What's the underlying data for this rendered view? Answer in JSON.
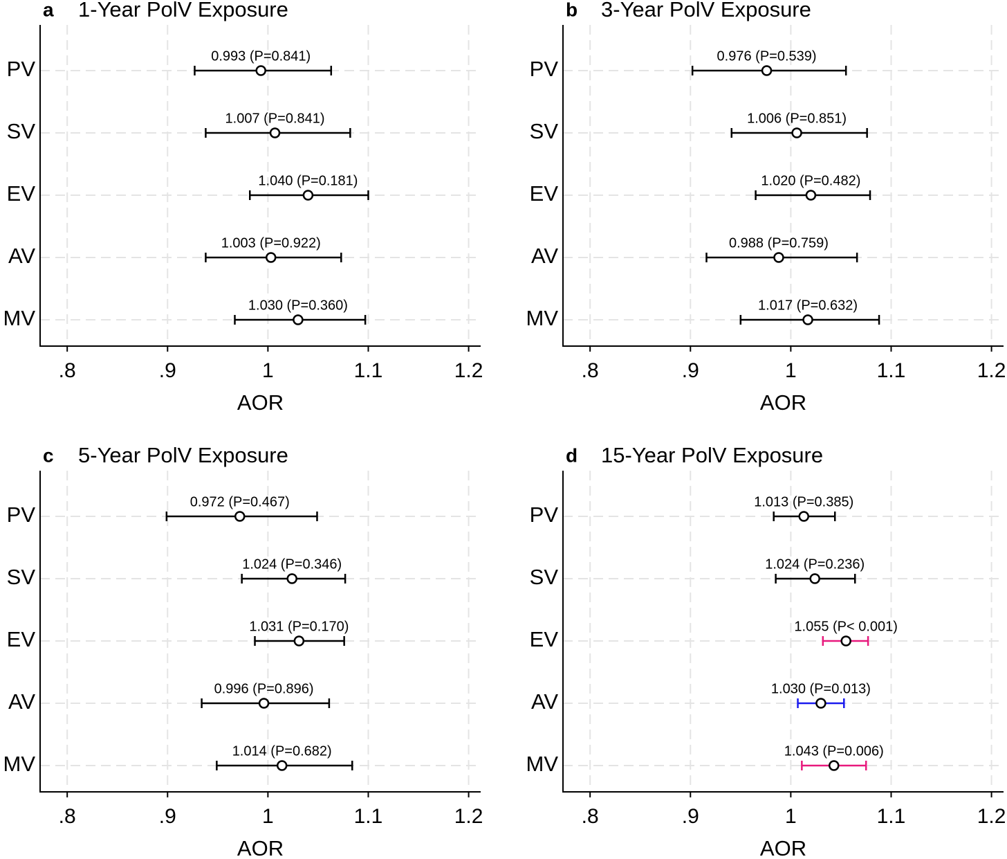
{
  "chart_data": [
    {
      "type": "forest",
      "panel": "a",
      "title": "1-Year PolV Exposure",
      "xlabel": "AOR",
      "categories": [
        "PV",
        "SV",
        "EV",
        "AV",
        "MV"
      ],
      "values": [
        0.993,
        1.007,
        1.04,
        1.003,
        1.03
      ],
      "ci_lower": [
        0.927,
        0.938,
        0.982,
        0.938,
        0.967
      ],
      "ci_upper": [
        1.063,
        1.082,
        1.1,
        1.073,
        1.097
      ],
      "value_labels": [
        "0.993 (P=0.841)",
        "1.007 (P=0.841)",
        "1.040 (P=0.181)",
        "1.003 (P=0.922)",
        "1.030 (P=0.360)"
      ],
      "colors": [
        "#000000",
        "#000000",
        "#000000",
        "#000000",
        "#000000"
      ],
      "xlim": [
        0.773,
        1.212
      ],
      "xticks": [
        {
          "value": 0.8,
          "label": ".8"
        },
        {
          "value": 0.9,
          "label": ".9"
        },
        1,
        1.1,
        1.2
      ],
      "grid": true
    },
    {
      "type": "forest",
      "panel": "b",
      "title": "3-Year PolV Exposure",
      "xlabel": "AOR",
      "categories": [
        "PV",
        "SV",
        "EV",
        "AV",
        "MV"
      ],
      "values": [
        0.976,
        1.006,
        1.02,
        0.988,
        1.017
      ],
      "ci_lower": [
        0.902,
        0.941,
        0.965,
        0.916,
        0.95
      ],
      "ci_upper": [
        1.055,
        1.076,
        1.079,
        1.066,
        1.088
      ],
      "value_labels": [
        "0.976 (P=0.539)",
        "1.006 (P=0.851)",
        "1.020 (P=0.482)",
        "0.988 (P=0.759)",
        "1.017 (P=0.632)"
      ],
      "colors": [
        "#000000",
        "#000000",
        "#000000",
        "#000000",
        "#000000"
      ],
      "xlim": [
        0.773,
        1.212
      ],
      "xticks": [
        {
          "value": 0.8,
          "label": ".8"
        },
        {
          "value": 0.9,
          "label": ".9"
        },
        1,
        1.1,
        1.2
      ],
      "grid": true
    },
    {
      "type": "forest",
      "panel": "c",
      "title": "5-Year PolV Exposure",
      "xlabel": "AOR",
      "categories": [
        "PV",
        "SV",
        "EV",
        "AV",
        "MV"
      ],
      "values": [
        0.972,
        1.024,
        1.031,
        0.996,
        1.014
      ],
      "ci_lower": [
        0.899,
        0.974,
        0.987,
        0.934,
        0.949
      ],
      "ci_upper": [
        1.049,
        1.077,
        1.076,
        1.061,
        1.084
      ],
      "value_labels": [
        "0.972 (P=0.467)",
        "1.024 (P=0.346)",
        "1.031 (P=0.170)",
        "0.996 (P=0.896)",
        "1.014 (P=0.682)"
      ],
      "colors": [
        "#000000",
        "#000000",
        "#000000",
        "#000000",
        "#000000"
      ],
      "xlim": [
        0.773,
        1.212
      ],
      "xticks": [
        {
          "value": 0.8,
          "label": ".8"
        },
        {
          "value": 0.9,
          "label": ".9"
        },
        1,
        1.1,
        1.2
      ],
      "grid": true
    },
    {
      "type": "forest",
      "panel": "d",
      "title": "15-Year PolV Exposure",
      "xlabel": "AOR",
      "categories": [
        "PV",
        "SV",
        "EV",
        "AV",
        "MV"
      ],
      "values": [
        1.013,
        1.024,
        1.055,
        1.03,
        1.043
      ],
      "ci_lower": [
        0.983,
        0.985,
        1.032,
        1.007,
        1.011
      ],
      "ci_upper": [
        1.044,
        1.064,
        1.077,
        1.053,
        1.075
      ],
      "value_labels": [
        "1.013 (P=0.385)",
        "1.024 (P=0.236)",
        "1.055 (P< 0.001)",
        "1.030 (P=0.013)",
        "1.043 (P=0.006)"
      ],
      "colors": [
        "#000000",
        "#000000",
        "#e8197d",
        "#1a1aee",
        "#e8197d"
      ],
      "xlim": [
        0.773,
        1.212
      ],
      "xticks": [
        {
          "value": 0.8,
          "label": ".8"
        },
        {
          "value": 0.9,
          "label": ".9"
        },
        1,
        1.1,
        1.2
      ],
      "grid": true
    }
  ]
}
